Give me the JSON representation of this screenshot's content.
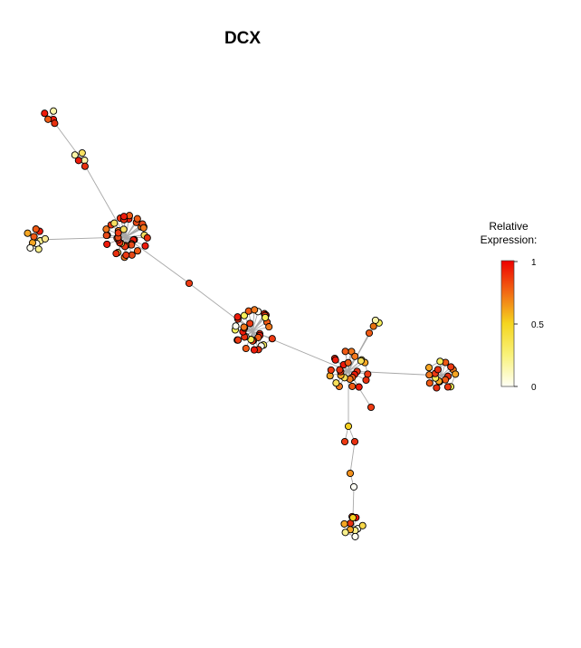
{
  "title": "DCX",
  "legend": {
    "title_line1": "Relative",
    "title_line2": "Expression:",
    "ticks": [
      "1",
      "0.5",
      "0"
    ],
    "colors": [
      "#fffff5",
      "#f7ef3c",
      "#f5a623",
      "#f25a14",
      "#ee0000"
    ]
  },
  "graph": {
    "hubs": [
      "A",
      "B",
      "C",
      "D",
      "E",
      "F",
      "G",
      "H",
      "I",
      "J",
      "K",
      "L",
      "M"
    ],
    "hub_edges": [
      [
        "A",
        "B"
      ],
      [
        "B",
        "C"
      ],
      [
        "C",
        "E"
      ],
      [
        "E",
        "F"
      ],
      [
        "F",
        "G"
      ],
      [
        "G",
        "H"
      ],
      [
        "H",
        "I"
      ],
      [
        "I",
        "J"
      ],
      [
        "J",
        "K"
      ],
      [
        "K",
        "M"
      ],
      [
        "K",
        "L"
      ],
      [
        "K",
        "D"
      ]
    ],
    "clusters": [
      {
        "hub": "A",
        "count": 40,
        "palette": [
          "#e8300f",
          "#ee1a0a",
          "#f05a14",
          "#e84a18",
          "#f2781c",
          "#ee3a12",
          "#f7e060"
        ]
      },
      {
        "hub": "E",
        "count": 34,
        "palette": [
          "#e8300f",
          "#ee1a0a",
          "#f05a14",
          "#f2781c",
          "#ee3a12",
          "#f7ef5a",
          "#fffff0"
        ]
      },
      {
        "hub": "K",
        "count": 26,
        "palette": [
          "#e8300f",
          "#ee1a0a",
          "#f05a14",
          "#f2781c",
          "#f7e05a",
          "#f5a623",
          "#ee3a12"
        ]
      },
      {
        "hub": "L",
        "count": 18,
        "palette": [
          "#e8300f",
          "#f05a14",
          "#f2781c",
          "#f5a623",
          "#f7ef5a",
          "#ee3a12"
        ]
      },
      {
        "hub": "D",
        "count": 10,
        "palette": [
          "#f7ef8c",
          "#fffff0",
          "#f5a623",
          "#f05a14",
          "#ee1a0a",
          "#fbe890"
        ]
      },
      {
        "hub": "N",
        "count": 10,
        "palette": [
          "#fffff0",
          "#f7ef8c",
          "#f5a623",
          "#e8300f",
          "#ee1a0a",
          "#f7d84a"
        ]
      },
      {
        "hub": "C",
        "count": 5,
        "palette": [
          "#ee1a0a",
          "#f05a14",
          "#fbf5a8",
          "#e8300f"
        ]
      },
      {
        "hub": "B",
        "count": 5,
        "palette": [
          "#fbf5a8",
          "#ee1a0a",
          "#f7e060",
          "#e8300f"
        ]
      },
      {
        "hub": "M",
        "count": 3,
        "palette": [
          "#f7ef5a",
          "#fbf5a8",
          "#e8700f"
        ]
      }
    ],
    "singletons": [
      {
        "id": "F",
        "color": "#ee3a12"
      },
      {
        "id": "G1",
        "color": "#f5d020"
      },
      {
        "id": "G2",
        "color": "#ee3a12"
      },
      {
        "id": "G3",
        "color": "#e8300f"
      },
      {
        "id": "H",
        "color": "#f2901c"
      },
      {
        "id": "I",
        "color": "#fffff5"
      },
      {
        "id": "J",
        "color": "#f7d020"
      },
      {
        "id": "S1",
        "color": "#f05a14"
      },
      {
        "id": "S2",
        "color": "#ee3a12"
      }
    ]
  }
}
